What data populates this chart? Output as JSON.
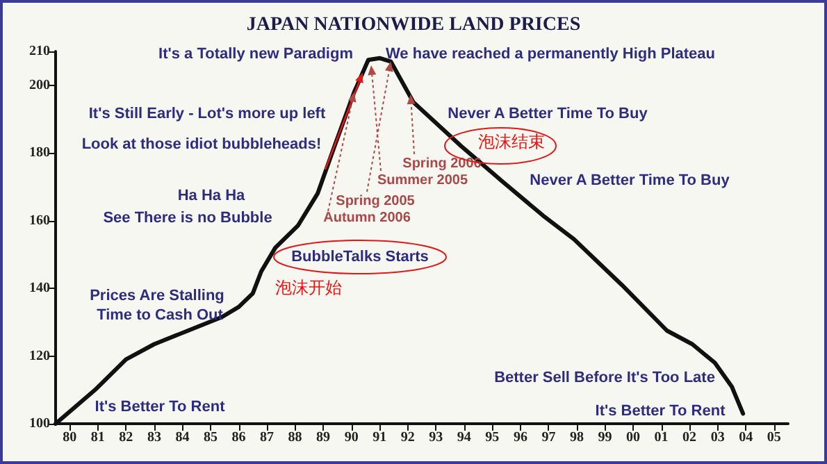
{
  "chart_data": {
    "type": "line",
    "title": "JAPAN NATIONWIDE LAND PRICES",
    "series": [
      {
        "color": "#111111",
        "x": [
          1979.5,
          1980.9,
          1982.0,
          1983.0,
          1984.2,
          1985.4,
          1986.0,
          1986.5,
          1986.8,
          1987.3,
          1988.1,
          1988.8,
          1989.4,
          1990.1,
          1990.6,
          1991.0,
          1991.4,
          1992.2,
          1993.9,
          1995.3,
          1996.8,
          1997.9,
          1999.6,
          2001.2,
          2002.1,
          2002.9,
          2003.5,
          2003.9
        ],
        "values": [
          100,
          110,
          119,
          123.5,
          127.5,
          131.5,
          134.5,
          138.5,
          145,
          152,
          158.5,
          168,
          182,
          198,
          207.5,
          208,
          207,
          195,
          182,
          172,
          161.5,
          154.5,
          141,
          127.5,
          123.5,
          118,
          111,
          103
        ]
      }
    ],
    "xlim": [
      1979.5,
      2005.5
    ],
    "xticks": [
      {
        "value": 1980,
        "label": "80"
      },
      {
        "value": 1981,
        "label": "81"
      },
      {
        "value": 1982,
        "label": "82"
      },
      {
        "value": 1983,
        "label": "83"
      },
      {
        "value": 1984,
        "label": "84"
      },
      {
        "value": 1985,
        "label": "85"
      },
      {
        "value": 1986,
        "label": "86"
      },
      {
        "value": 1987,
        "label": "87"
      },
      {
        "value": 1988,
        "label": "88"
      },
      {
        "value": 1989,
        "label": "89"
      },
      {
        "value": 1990,
        "label": "90"
      },
      {
        "value": 1991,
        "label": "91"
      },
      {
        "value": 1992,
        "label": "92"
      },
      {
        "value": 1993,
        "label": "93"
      },
      {
        "value": 1994,
        "label": "94"
      },
      {
        "value": 1995,
        "label": "95"
      },
      {
        "value": 1996,
        "label": "96"
      },
      {
        "value": 1997,
        "label": "97"
      },
      {
        "value": 1998,
        "label": "98"
      },
      {
        "value": 1999,
        "label": "99"
      },
      {
        "value": 2000,
        "label": "00"
      },
      {
        "value": 2001,
        "label": "01"
      },
      {
        "value": 2002,
        "label": "02"
      },
      {
        "value": 2003,
        "label": "03"
      },
      {
        "value": 2004,
        "label": "04"
      },
      {
        "value": 2005,
        "label": "05"
      }
    ],
    "ylim": [
      100,
      210
    ],
    "yticks": [
      100,
      120,
      140,
      160,
      180,
      200,
      210
    ],
    "grid": false,
    "marker": "none",
    "line_style": "solid",
    "annotations": [
      "It's a Totally new Paradigm",
      "We have reached a permanently High Plateau",
      "It's Still Early - Lot's more up left",
      {
        "text": "Look at those idiot bubbleheads!",
        "x": 1990.4,
        "y": 203.7
      },
      "Never A Better Time To Buy",
      "泡沫结束",
      "Never A Better Time To Buy",
      "Ha Ha Ha",
      "See There is no Bubble",
      {
        "text": "Spring 2006",
        "x": 1992.1,
        "y": 197.3
      },
      {
        "text": "Summer 2005",
        "x": 1990.7,
        "y": 205.9
      },
      {
        "text": "Spring 2005",
        "x": 1991.4,
        "y": 207
      },
      {
        "text": "Autumn 2006",
        "x": 1990.1,
        "y": 198
      },
      "BubbleTalks Starts",
      "泡沫开始",
      "Prices Are Stalling",
      "Time to Cash Out",
      "It's Better To Rent",
      "Better Sell Before It's Too Late",
      "It's Better To Rent"
    ]
  }
}
